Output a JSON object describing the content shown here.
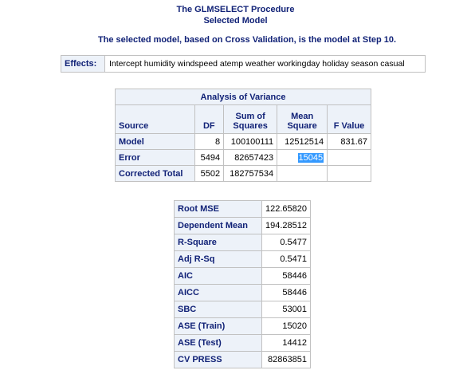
{
  "header": {
    "procedure_title": "The GLMSELECT Procedure",
    "subtitle": "Selected Model",
    "selection_note": "The selected model, based on Cross Validation, is the model at Step 10."
  },
  "effects": {
    "label": "Effects:",
    "value": "Intercept humidity windspeed atemp weather workingday holiday season casual"
  },
  "anova": {
    "caption": "Analysis of Variance",
    "columns": {
      "source": "Source",
      "df": "DF",
      "ss_line1": "Sum of",
      "ss_line2": "Squares",
      "ms_line1": "Mean",
      "ms_line2": "Square",
      "f": "F Value"
    },
    "rows": [
      {
        "source": "Model",
        "df": "8",
        "ss": "100100111",
        "ms": "12512514",
        "f": "831.67"
      },
      {
        "source": "Error",
        "df": "5494",
        "ss": "82657423",
        "ms": "15045",
        "f": ""
      },
      {
        "source": "Corrected Total",
        "df": "5502",
        "ss": "182757534",
        "ms": "",
        "f": ""
      }
    ]
  },
  "fit_stats": [
    {
      "label": "Root MSE",
      "value": "122.65820"
    },
    {
      "label": "Dependent Mean",
      "value": "194.28512"
    },
    {
      "label": "R-Square",
      "value": "0.5477"
    },
    {
      "label": "Adj R-Sq",
      "value": "0.5471"
    },
    {
      "label": "AIC",
      "value": "58446"
    },
    {
      "label": "AICC",
      "value": "58446"
    },
    {
      "label": "SBC",
      "value": "53001"
    },
    {
      "label": "ASE (Train)",
      "value": "15020"
    },
    {
      "label": "ASE (Test)",
      "value": "14412"
    },
    {
      "label": "CV PRESS",
      "value": "82863851"
    }
  ],
  "colors": {
    "header_bg": "#edf2f9",
    "header_text": "#112277",
    "border": "#c1c1c1",
    "selection": "#3399ff"
  }
}
